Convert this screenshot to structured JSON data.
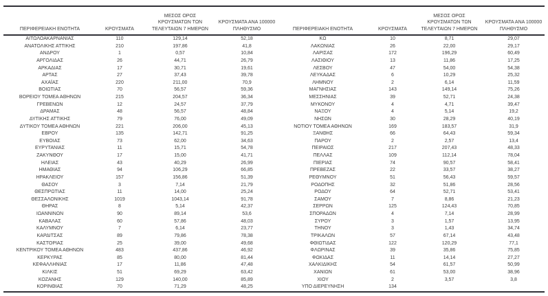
{
  "table": {
    "headers": {
      "region": "ΠΕΡΙΦΕΡΕΙΑΚΗ ΕΝΟΤΗΤΑ",
      "cases": "ΚΡΟΥΣΜΑΤΑ",
      "avg7_line1": "ΜΕΣΟΣ ΟΡΟΣ",
      "avg7_line2": "ΚΡΟΥΣΜΑΤΩΝ ΤΩΝ",
      "avg7_line3": "ΤΕΛΕΥΤΑΙΩΝ 7 ΗΜΕΡΩΝ",
      "per100k_line1": "ΚΡΟΥΣΜΑΤΑ ΑΝΑ 100000",
      "per100k_line2": "ΠΛΗΘΥΣΜΟ"
    },
    "left_rows": [
      [
        "ΑΙΤΩΛΟΑΚΑΡΝΑΝΙΑΣ",
        "110",
        "129,14",
        "52,18"
      ],
      [
        "ΑΝΑΤΟΛΙΚΗΣ ΑΤΤΙΚΗΣ",
        "210",
        "197,86",
        "41,8"
      ],
      [
        "ΑΝΔΡΟΥ",
        "1",
        "0,57",
        "10,84"
      ],
      [
        "ΑΡΓΟΛΙΔΑΣ",
        "26",
        "44,71",
        "26,79"
      ],
      [
        "ΑΡΚΑΔΙΑΣ",
        "17",
        "30,71",
        "19,61"
      ],
      [
        "ΑΡΤΑΣ",
        "27",
        "37,43",
        "39,78"
      ],
      [
        "ΑΧΑΪΑΣ",
        "220",
        "211,00",
        "70,9"
      ],
      [
        "ΒΟΙΩΤΙΑΣ",
        "70",
        "56,57",
        "59,36"
      ],
      [
        "ΒΟΡΕΙΟΥ ΤΟΜΕΑ ΑΘΗΝΩΝ",
        "215",
        "204,57",
        "36,34"
      ],
      [
        "ΓΡΕΒΕΝΩΝ",
        "12",
        "24,57",
        "37,79"
      ],
      [
        "ΔΡΑΜΑΣ",
        "48",
        "56,57",
        "48,84"
      ],
      [
        "ΔΥΤΙΚΗΣ ΑΤΤΙΚΗΣ",
        "79",
        "76,00",
        "49,09"
      ],
      [
        "ΔΥΤΙΚΟΥ ΤΟΜΕΑ ΑΘΗΝΩΝ",
        "221",
        "206,00",
        "45,13"
      ],
      [
        "ΕΒΡΟΥ",
        "135",
        "142,71",
        "91,25"
      ],
      [
        "ΕΥΒΟΙΑΣ",
        "73",
        "62,00",
        "34,63"
      ],
      [
        "ΕΥΡΥΤΑΝΙΑΣ",
        "11",
        "15,71",
        "54,78"
      ],
      [
        "ΖΑΚΥΝΘΟΥ",
        "17",
        "15,00",
        "41,71"
      ],
      [
        "ΗΛΕΙΑΣ",
        "43",
        "40,29",
        "26,99"
      ],
      [
        "ΗΜΑΘΙΑΣ",
        "94",
        "106,29",
        "66,85"
      ],
      [
        "ΗΡΑΚΛΕΙΟΥ",
        "157",
        "156,86",
        "51,39"
      ],
      [
        "ΘΑΣΟΥ",
        "3",
        "7,14",
        "21,79"
      ],
      [
        "ΘΕΣΠΡΩΤΙΑΣ",
        "11",
        "14,00",
        "25,24"
      ],
      [
        "ΘΕΣΣΑΛΟΝΙΚΗΣ",
        "1019",
        "1043,14",
        "91,78"
      ],
      [
        "ΘΗΡΑΣ",
        "8",
        "5,14",
        "42,37"
      ],
      [
        "ΙΩΑΝΝΙΝΩΝ",
        "90",
        "89,14",
        "53,6"
      ],
      [
        "ΚΑΒΑΛΑΣ",
        "60",
        "57,86",
        "48,03"
      ],
      [
        "ΚΑΛΥΜΝΟΥ",
        "7",
        "6,14",
        "23,77"
      ],
      [
        "ΚΑΡΔΙΤΣΑΣ",
        "89",
        "79,86",
        "78,38"
      ],
      [
        "ΚΑΣΤΟΡΙΑΣ",
        "25",
        "39,00",
        "49,68"
      ],
      [
        "ΚΕΝΤΡΙΚΟΥ ΤΟΜΕΑ ΑΘΗΝΩΝ",
        "483",
        "437,86",
        "46,92"
      ],
      [
        "ΚΕΡΚΥΡΑΣ",
        "85",
        "80,00",
        "81,44"
      ],
      [
        "ΚΕΦΑΛΛΗΝΙΑΣ",
        "17",
        "11,86",
        "47,48"
      ],
      [
        "ΚΙΛΚΙΣ",
        "51",
        "69,29",
        "63,42"
      ],
      [
        "ΚΟΖΑΝΗΣ",
        "129",
        "140,00",
        "85,89"
      ],
      [
        "ΚΟΡΙΝΘΙΑΣ",
        "70",
        "71,29",
        "48,25"
      ]
    ],
    "right_rows": [
      [
        "ΚΩ",
        "10",
        "8,71",
        "29,07"
      ],
      [
        "ΛΑΚΩΝΙΑΣ",
        "26",
        "22,00",
        "29,17"
      ],
      [
        "ΛΑΡΙΣΑΣ",
        "172",
        "196,29",
        "60,49"
      ],
      [
        "ΛΑΣΙΘΙΟΥ",
        "13",
        "11,86",
        "17,25"
      ],
      [
        "ΛΕΣΒΟΥ",
        "47",
        "54,00",
        "54,38"
      ],
      [
        "ΛΕΥΚΑΔΑΣ",
        "6",
        "10,29",
        "25,32"
      ],
      [
        "ΛΗΜΝΟΥ",
        "2",
        "6,14",
        "11,59"
      ],
      [
        "ΜΑΓΝΗΣΙΑΣ",
        "143",
        "149,14",
        "75,26"
      ],
      [
        "ΜΕΣΣΗΝΙΑΣ",
        "39",
        "52,71",
        "24,38"
      ],
      [
        "ΜΥΚΟΝΟΥ",
        "4",
        "4,71",
        "39,47"
      ],
      [
        "ΝΑΞΟΥ",
        "4",
        "5,14",
        "19,2"
      ],
      [
        "ΝΗΣΩΝ",
        "30",
        "28,29",
        "40,19"
      ],
      [
        "ΝΟΤΙΟΥ ΤΟΜΕΑ ΑΘΗΝΩΝ",
        "169",
        "183,57",
        "31,9"
      ],
      [
        "ΞΑΝΘΗΣ",
        "66",
        "64,43",
        "59,34"
      ],
      [
        "ΠΑΡΟΥ",
        "2",
        "2,57",
        "13,4"
      ],
      [
        "ΠΕΙΡΑΙΩΣ",
        "217",
        "207,43",
        "48,33"
      ],
      [
        "ΠΕΛΛΑΣ",
        "109",
        "112,14",
        "78,04"
      ],
      [
        "ΠΙΕΡΙΑΣ",
        "74",
        "90,57",
        "58,41"
      ],
      [
        "ΠΡΕΒΕΖΑΣ",
        "22",
        "33,57",
        "38,27"
      ],
      [
        "ΡΕΘΥΜΝΟΥ",
        "51",
        "56,43",
        "59,57"
      ],
      [
        "ΡΟΔΟΠΗΣ",
        "32",
        "51,86",
        "28,56"
      ],
      [
        "ΡΟΔΟΥ",
        "64",
        "52,71",
        "53,41"
      ],
      [
        "ΣΑΜΟΥ",
        "7",
        "8,86",
        "21,23"
      ],
      [
        "ΣΕΡΡΩΝ",
        "125",
        "124,43",
        "70,85"
      ],
      [
        "ΣΠΟΡΑΔΩΝ",
        "4",
        "7,14",
        "28,99"
      ],
      [
        "ΣΥΡΟΥ",
        "3",
        "1,57",
        "13,95"
      ],
      [
        "ΤΗΝΟΥ",
        "3",
        "1,43",
        "34,74"
      ],
      [
        "ΤΡΙΚΑΛΩΝ",
        "57",
        "67,14",
        "43,48"
      ],
      [
        "ΦΘΙΩΤΙΔΑΣ",
        "122",
        "120,29",
        "77,1"
      ],
      [
        "ΦΛΩΡΙΝΑΣ",
        "39",
        "35,86",
        "75,85"
      ],
      [
        "ΦΩΚΙΔΑΣ",
        "11",
        "14,14",
        "27,27"
      ],
      [
        "ΧΑΛΚΙΔΙΚΗΣ",
        "54",
        "61,57",
        "50,99"
      ],
      [
        "ΧΑΝΙΩΝ",
        "61",
        "53,00",
        "38,96"
      ],
      [
        "ΧΙΟΥ",
        "2",
        "3,57",
        "3,8"
      ],
      [
        "ΥΠΟ ΔΙΕΡΕΥΝΗΣΗ",
        "134",
        "",
        ""
      ]
    ]
  }
}
